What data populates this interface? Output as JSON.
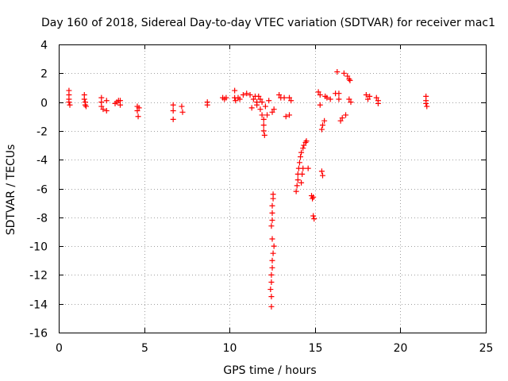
{
  "chart_data": {
    "type": "scatter",
    "title": "Day 160 of 2018, Sidereal Day-to-day VTEC variation (SDTVAR) for receiver mac1",
    "xlabel": "GPS time / hours",
    "ylabel": "SDTVAR / TECUs",
    "xlim": [
      0,
      25
    ],
    "ylim": [
      -16,
      4
    ],
    "xticks": [
      0,
      5,
      10,
      15,
      20,
      25
    ],
    "xtick_labels": [
      "0",
      "5",
      "10",
      "15",
      "20",
      "25"
    ],
    "yticks": [
      4,
      2,
      0,
      -2,
      -4,
      -6,
      -8,
      -10,
      -12,
      -14,
      -16
    ],
    "ytick_labels": [
      "4",
      "2",
      "0",
      "-2",
      "-4",
      "-6",
      "-8",
      "-10",
      "-12",
      "-14",
      "-16"
    ],
    "grid": true,
    "marker": "plus",
    "color": "#ff0000",
    "series": [
      {
        "name": "SDTVAR",
        "points": [
          [
            0.6,
            0.8
          ],
          [
            0.6,
            0.5
          ],
          [
            0.6,
            0.2
          ],
          [
            0.6,
            0.0
          ],
          [
            0.65,
            -0.2
          ],
          [
            1.5,
            0.5
          ],
          [
            1.5,
            0.2
          ],
          [
            1.55,
            0.0
          ],
          [
            1.55,
            -0.2
          ],
          [
            1.6,
            -0.3
          ],
          [
            2.5,
            0.3
          ],
          [
            2.5,
            0.0
          ],
          [
            2.5,
            -0.3
          ],
          [
            2.6,
            -0.5
          ],
          [
            2.8,
            0.1
          ],
          [
            2.8,
            -0.6
          ],
          [
            3.3,
            -0.1
          ],
          [
            3.4,
            0.0
          ],
          [
            3.5,
            0.1
          ],
          [
            3.6,
            0.1
          ],
          [
            3.6,
            -0.2
          ],
          [
            4.6,
            -0.3
          ],
          [
            4.6,
            -0.6
          ],
          [
            4.65,
            -1.0
          ],
          [
            4.7,
            -0.4
          ],
          [
            6.7,
            -0.2
          ],
          [
            6.7,
            -0.6
          ],
          [
            6.7,
            -1.2
          ],
          [
            7.2,
            -0.3
          ],
          [
            7.25,
            -0.7
          ],
          [
            8.7,
            0.0
          ],
          [
            8.7,
            -0.2
          ],
          [
            9.6,
            0.3
          ],
          [
            9.7,
            0.2
          ],
          [
            9.8,
            0.3
          ],
          [
            10.3,
            0.8
          ],
          [
            10.3,
            0.3
          ],
          [
            10.35,
            0.1
          ],
          [
            10.5,
            0.3
          ],
          [
            10.6,
            0.2
          ],
          [
            10.8,
            0.5
          ],
          [
            11.0,
            0.6
          ],
          [
            11.2,
            0.5
          ],
          [
            11.3,
            -0.4
          ],
          [
            11.4,
            0.2
          ],
          [
            11.5,
            0.4
          ],
          [
            11.6,
            -0.2
          ],
          [
            11.6,
            0.0
          ],
          [
            11.7,
            0.4
          ],
          [
            11.8,
            0.2
          ],
          [
            11.8,
            -0.5
          ],
          [
            11.9,
            0.0
          ],
          [
            11.9,
            -0.9
          ],
          [
            12.0,
            -1.2
          ],
          [
            12.0,
            -1.6
          ],
          [
            12.0,
            -2.0
          ],
          [
            12.05,
            -2.3
          ],
          [
            12.1,
            -0.3
          ],
          [
            12.2,
            -0.9
          ],
          [
            12.3,
            0.1
          ],
          [
            12.5,
            -0.7
          ],
          [
            12.6,
            -0.5
          ],
          [
            12.9,
            0.5
          ],
          [
            13.0,
            0.3
          ],
          [
            13.2,
            0.3
          ],
          [
            13.3,
            -1.0
          ],
          [
            13.5,
            0.3
          ],
          [
            13.5,
            -0.9
          ],
          [
            13.6,
            0.1
          ],
          [
            12.55,
            -6.4
          ],
          [
            12.55,
            -6.7
          ],
          [
            12.5,
            -7.2
          ],
          [
            12.5,
            -7.7
          ],
          [
            12.5,
            -8.2
          ],
          [
            12.45,
            -8.6
          ],
          [
            12.5,
            -9.5
          ],
          [
            12.6,
            -10.0
          ],
          [
            12.55,
            -10.5
          ],
          [
            12.5,
            -11.0
          ],
          [
            12.5,
            -11.5
          ],
          [
            12.45,
            -12.0
          ],
          [
            12.45,
            -12.5
          ],
          [
            12.4,
            -13.0
          ],
          [
            12.45,
            -13.5
          ],
          [
            12.45,
            -14.2
          ],
          [
            13.9,
            -6.2
          ],
          [
            13.95,
            -5.8
          ],
          [
            14.0,
            -5.4
          ],
          [
            14.0,
            -5.0
          ],
          [
            14.05,
            -4.6
          ],
          [
            14.1,
            -4.2
          ],
          [
            14.15,
            -3.8
          ],
          [
            14.2,
            -3.5
          ],
          [
            14.3,
            -3.2
          ],
          [
            14.35,
            -3.0
          ],
          [
            14.45,
            -2.8
          ],
          [
            14.5,
            -2.7
          ],
          [
            14.2,
            -5.6
          ],
          [
            14.25,
            -5.0
          ],
          [
            14.3,
            -4.6
          ],
          [
            14.6,
            -4.6
          ],
          [
            14.8,
            -6.5
          ],
          [
            14.85,
            -6.7
          ],
          [
            14.9,
            -6.6
          ],
          [
            14.9,
            -7.9
          ],
          [
            14.95,
            -8.1
          ],
          [
            15.2,
            0.7
          ],
          [
            15.3,
            0.5
          ],
          [
            15.3,
            -0.2
          ],
          [
            15.4,
            -1.9
          ],
          [
            15.45,
            -1.6
          ],
          [
            15.55,
            -1.3
          ],
          [
            15.4,
            -4.8
          ],
          [
            15.45,
            -5.1
          ],
          [
            15.6,
            0.4
          ],
          [
            15.7,
            0.3
          ],
          [
            15.9,
            0.2
          ],
          [
            16.2,
            0.6
          ],
          [
            16.4,
            0.6
          ],
          [
            16.4,
            0.2
          ],
          [
            16.3,
            2.1
          ],
          [
            16.7,
            2.0
          ],
          [
            16.9,
            1.8
          ],
          [
            17.0,
            1.6
          ],
          [
            17.05,
            1.5
          ],
          [
            16.5,
            -1.3
          ],
          [
            16.6,
            -1.1
          ],
          [
            16.8,
            -0.9
          ],
          [
            17.0,
            0.2
          ],
          [
            17.1,
            0.0
          ],
          [
            18.0,
            0.5
          ],
          [
            18.1,
            0.2
          ],
          [
            18.2,
            0.4
          ],
          [
            18.6,
            0.3
          ],
          [
            18.7,
            0.1
          ],
          [
            18.7,
            -0.1
          ],
          [
            21.5,
            0.4
          ],
          [
            21.5,
            0.1
          ],
          [
            21.5,
            -0.1
          ],
          [
            21.55,
            -0.3
          ]
        ]
      }
    ]
  }
}
